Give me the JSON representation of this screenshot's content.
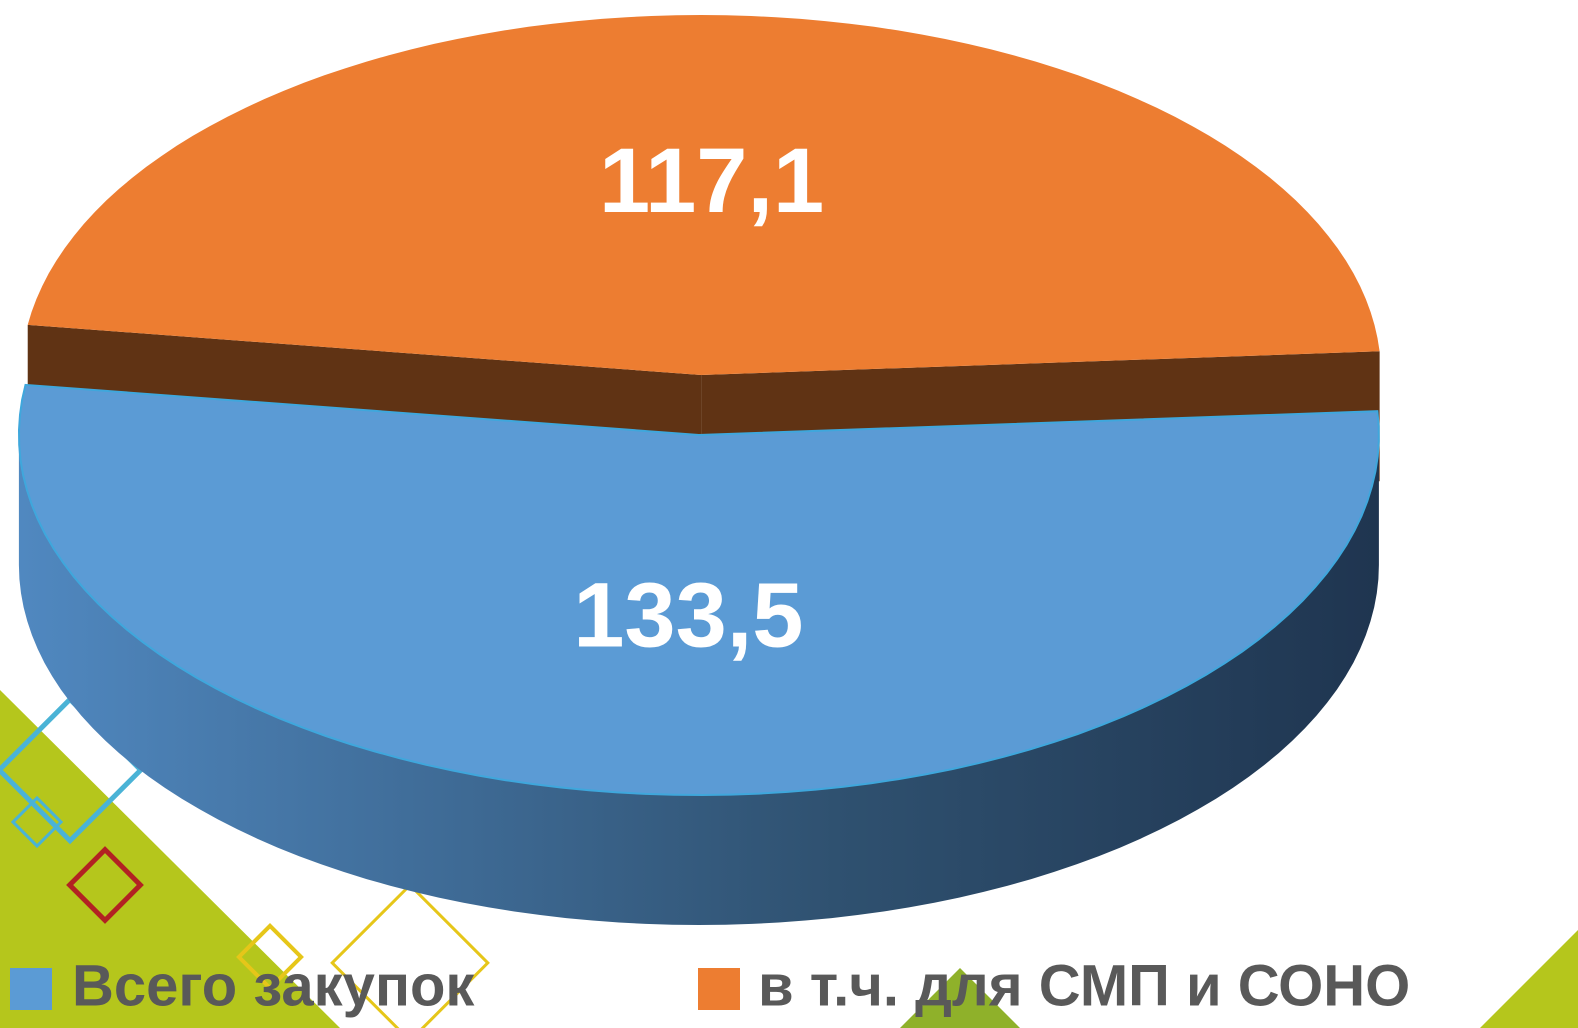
{
  "chart_data": {
    "type": "pie3d",
    "categories": [
      "Всего закупок",
      "в т.ч. для СМП и СОНО"
    ],
    "values": [
      133.5,
      117.1
    ],
    "value_labels": [
      "133,5",
      "117,1"
    ],
    "colors": [
      "#5b9bd5",
      "#ed7d31"
    ],
    "legend": "bottom"
  }
}
